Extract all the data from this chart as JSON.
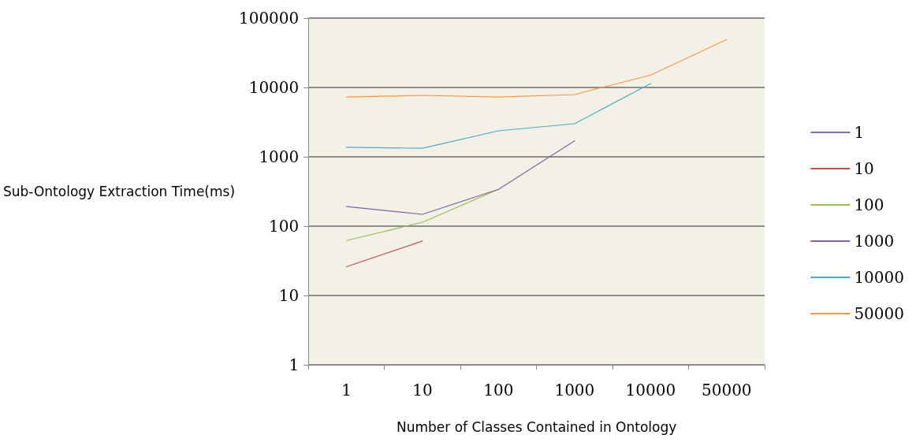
{
  "chart_data": {
    "type": "line",
    "xlabel": "Number of Classes Contained in Ontology",
    "ylabel": "Sub-Ontology Extraction Time(ms)",
    "categories": [
      "1",
      "10",
      "100",
      "1000",
      "10000",
      "50000"
    ],
    "series": [
      {
        "name": "1",
        "color": "#7d6bb0",
        "values": [
          null,
          null,
          null,
          null,
          null,
          null
        ]
      },
      {
        "name": "10",
        "color": "#c0504d",
        "values": [
          26,
          61,
          null,
          null,
          null,
          null
        ]
      },
      {
        "name": "100",
        "color": "#9bbb59",
        "values": [
          62,
          114,
          340,
          null,
          null,
          null
        ]
      },
      {
        "name": "1000",
        "color": "#8064a2",
        "values": [
          192,
          148,
          340,
          1700,
          null,
          null
        ]
      },
      {
        "name": "10000",
        "color": "#4bacc6",
        "values": [
          1370,
          1330,
          2370,
          3000,
          11400,
          null
        ]
      },
      {
        "name": "50000",
        "color": "#f79646",
        "values": [
          7300,
          7700,
          7300,
          7900,
          15100,
          49000
        ]
      }
    ],
    "log": "y",
    "ylim": [
      1,
      100000
    ],
    "yticks": [
      1,
      10,
      100,
      1000,
      10000,
      100000
    ],
    "grid": "y",
    "legend": "right",
    "marker": "none",
    "line_style": "solid"
  }
}
